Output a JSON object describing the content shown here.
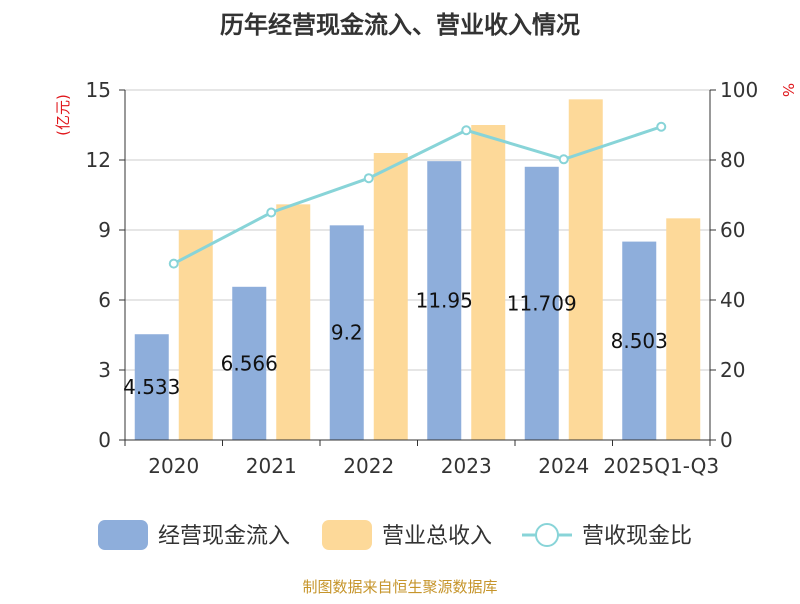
{
  "chart_data": {
    "type": "bar",
    "title": "历年经营现金流入、营业收入情况",
    "categories": [
      "2020",
      "2021",
      "2022",
      "2023",
      "2024",
      "2025Q1-Q3"
    ],
    "series": [
      {
        "name": "经营现金流入",
        "type": "bar",
        "axis": "left",
        "color": "#8eaedb",
        "values": [
          4.533,
          6.566,
          9.2,
          11.95,
          11.709,
          8.503
        ],
        "data_labels": [
          "4.533",
          "6.566",
          "9.2",
          "11.95",
          "11.709",
          "8.503"
        ]
      },
      {
        "name": "营业总收入",
        "type": "bar",
        "axis": "left",
        "color": "#fdd999",
        "values": [
          9.0,
          10.1,
          12.3,
          13.5,
          14.6,
          9.5
        ]
      },
      {
        "name": "营收现金比",
        "type": "line",
        "axis": "right",
        "color": "#88d4d8",
        "values": [
          50.4,
          65.0,
          74.8,
          88.5,
          80.2,
          89.5
        ]
      }
    ],
    "y_left": {
      "unit": "(亿元)",
      "ylim": [
        0,
        15
      ],
      "ticks": [
        "0",
        "3",
        "6",
        "9",
        "12",
        "15"
      ]
    },
    "y_right": {
      "unit": "%",
      "ylim": [
        0,
        100
      ],
      "ticks": [
        "0",
        "20",
        "40",
        "60",
        "80",
        "100"
      ]
    },
    "grid": true,
    "legend_position": "bottom"
  },
  "footer": {
    "source": "制图数据来自恒生聚源数据库"
  },
  "colors": {
    "title": "#333333",
    "axis_text": "#333333",
    "unit": "#e0161b",
    "footer": "#c6952b",
    "grid": "#cccccc"
  }
}
